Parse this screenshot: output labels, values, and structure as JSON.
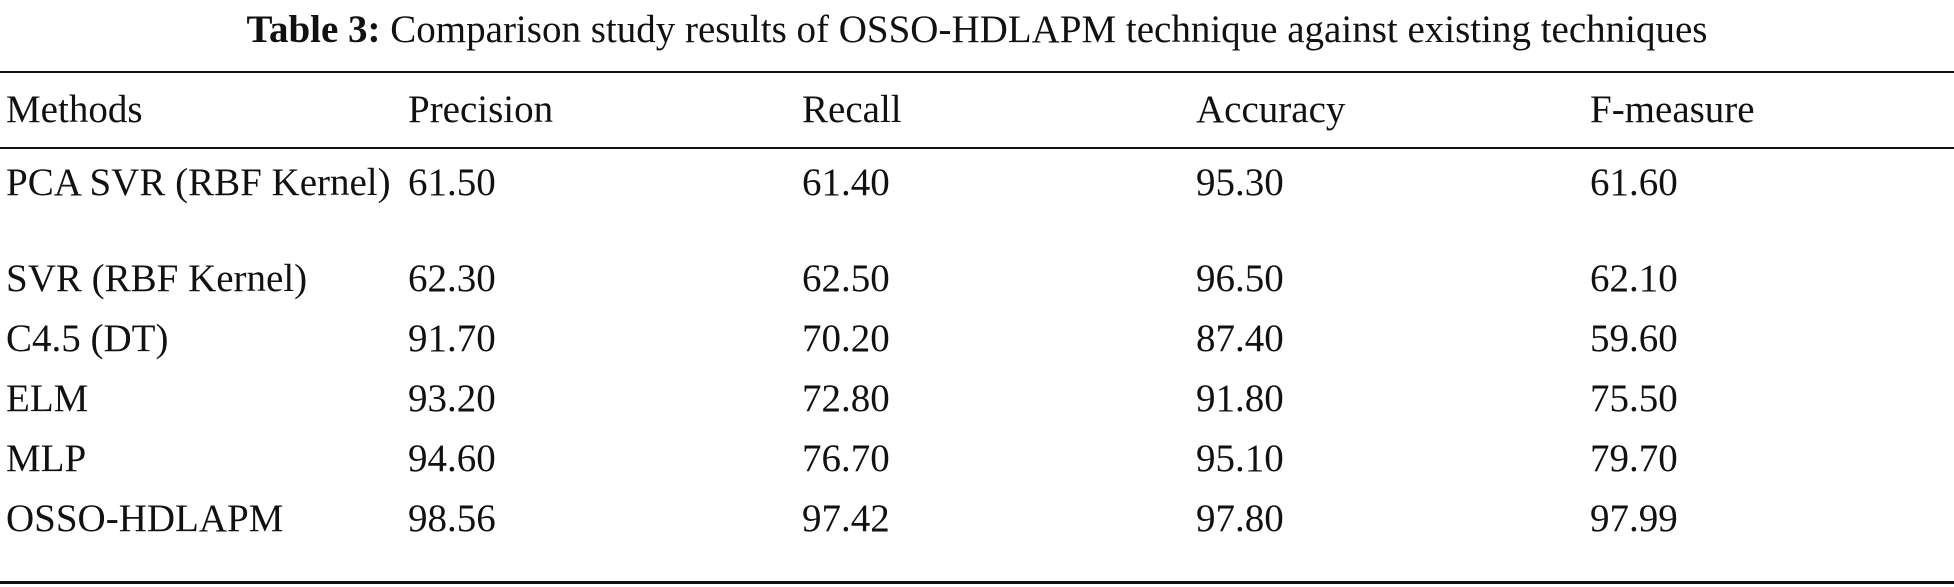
{
  "table": {
    "caption_label": "Table 3:",
    "caption_text": "Comparison study results of OSSO-HDLAPM technique against existing techniques",
    "headers": [
      "Methods",
      "Precision",
      "Recall",
      "Accuracy",
      "F-measure"
    ],
    "rows": [
      [
        "PCA SVR (RBF Kernel)",
        "61.50",
        "61.40",
        "95.30",
        "61.60"
      ],
      [
        "SVR (RBF Kernel)",
        "62.30",
        "62.50",
        "96.50",
        "62.10"
      ],
      [
        "C4.5 (DT)",
        "91.70",
        "70.20",
        "87.40",
        "59.60"
      ],
      [
        "ELM",
        "93.20",
        "72.80",
        "91.80",
        "75.50"
      ],
      [
        "MLP",
        "94.60",
        "76.70",
        "95.10",
        "79.70"
      ],
      [
        "OSSO-HDLAPM",
        "98.56",
        "97.42",
        "97.80",
        "97.99"
      ]
    ]
  }
}
